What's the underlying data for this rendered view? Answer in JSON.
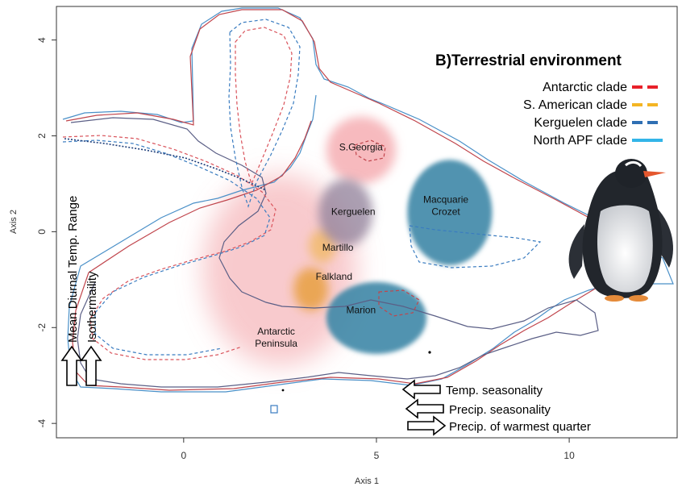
{
  "chart_data": {
    "type": "scatter",
    "panel_title": "B)Terrestrial environment",
    "xlabel": "Axis 1",
    "ylabel": "Axis 2",
    "xlim": [
      -3.3,
      12.8
    ],
    "ylim": [
      -4.3,
      4.7
    ],
    "xticks": [
      0,
      5,
      10
    ],
    "yticks": [
      -4,
      -2,
      0,
      2,
      4
    ],
    "legend_position": "top-right",
    "legend": [
      {
        "name": "Antarctic clade",
        "color": "#e8202a"
      },
      {
        "name": "S. American clade",
        "color": "#f4b523"
      },
      {
        "name": "Kerguelen clade",
        "color": "#2f6fb3"
      },
      {
        "name": "North APF clade",
        "color": "#33b5e8"
      }
    ],
    "regions": [
      {
        "label": "S.Georgia",
        "x": 4.6,
        "y": 1.7
      },
      {
        "label": "Kerguelen",
        "x": 4.4,
        "y": 0.35
      },
      {
        "label": "Macquarie",
        "x": 6.8,
        "y": 0.6
      },
      {
        "label": "Crozet",
        "x": 6.8,
        "y": 0.35
      },
      {
        "label": "Martillo",
        "x": 4.0,
        "y": -0.4
      },
      {
        "label": "Falkland",
        "x": 3.9,
        "y": -1.0
      },
      {
        "label": "Marion",
        "x": 4.6,
        "y": -1.7
      },
      {
        "label": "Antarctic",
        "x": 2.4,
        "y": -2.15
      },
      {
        "label": "Peninsula",
        "x": 2.4,
        "y": -2.4
      }
    ],
    "density_clouds": [
      {
        "clade": "Antarctic clade",
        "color": "#f08a90",
        "cx": 2.5,
        "cy": -0.8,
        "rx": 2.0,
        "ry": 2.0
      },
      {
        "clade": "Antarctic clade",
        "color": "#f4a3a8",
        "cx": 4.6,
        "cy": 1.7,
        "rx": 0.9,
        "ry": 0.7
      },
      {
        "clade": "S. American clade",
        "color": "#e59b2f",
        "cx": 3.3,
        "cy": -1.2,
        "rx": 0.45,
        "ry": 0.45
      },
      {
        "clade": "S. American clade",
        "color": "#f0b860",
        "cx": 3.6,
        "cy": -0.3,
        "rx": 0.35,
        "ry": 0.35
      },
      {
        "clade": "Kerguelen clade",
        "color": "#8f7e98",
        "cx": 4.2,
        "cy": 0.4,
        "rx": 0.7,
        "ry": 0.7
      },
      {
        "clade": "North APF clade",
        "color": "#3f87a7",
        "cx": 6.9,
        "cy": 0.4,
        "rx": 1.1,
        "ry": 1.1
      },
      {
        "clade": "North APF clade",
        "color": "#3f87a7",
        "cx": 5.0,
        "cy": -1.8,
        "rx": 1.3,
        "ry": 0.75
      }
    ],
    "vertical_arrows": [
      "Mean Diurnal Temp. Range",
      "Isothermaility"
    ],
    "horizontal_arrows": [
      {
        "label": "Temp. seasonality",
        "direction": "left"
      },
      {
        "label": "Precip. seasonality",
        "direction": "left"
      },
      {
        "label": "Precip. of warmest quarter",
        "direction": "right"
      }
    ],
    "grid": false
  }
}
